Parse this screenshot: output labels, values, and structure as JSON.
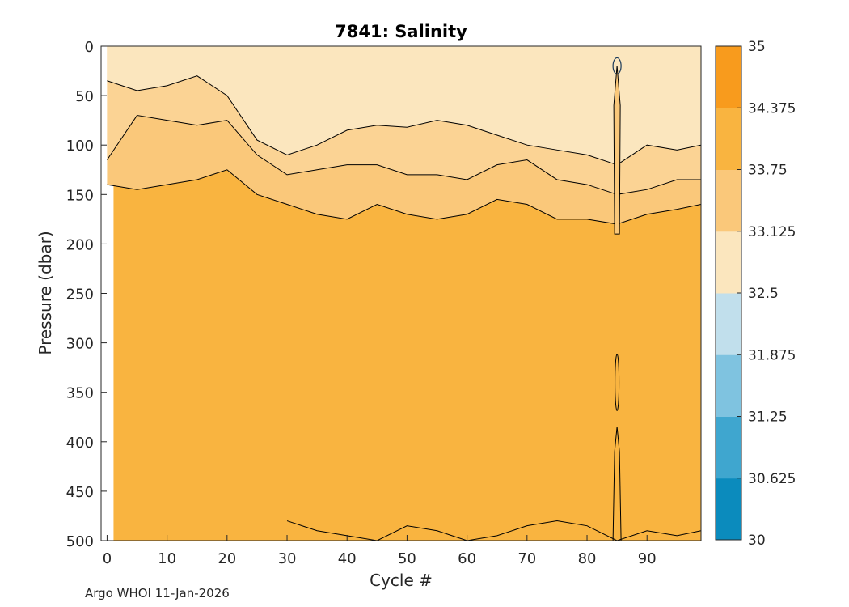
{
  "chart_data": {
    "type": "heatmap",
    "subtype": "filled-contour",
    "title": "7841:  Salinity",
    "xlabel": "Cycle #",
    "ylabel": "Pressure (dbar)",
    "xlim": [
      -1,
      99
    ],
    "ylim": [
      0,
      500
    ],
    "y_reversed": true,
    "x_ticks": [
      0,
      10,
      20,
      30,
      40,
      50,
      60,
      70,
      80,
      90
    ],
    "y_ticks": [
      0,
      50,
      100,
      150,
      200,
      250,
      300,
      350,
      400,
      450,
      500
    ],
    "colorbar": {
      "ticks": [
        "30",
        "30.625",
        "31.25",
        "31.875",
        "32.5",
        "33.125",
        "33.75",
        "34.375",
        "35"
      ],
      "colors": [
        "#0b8bbd",
        "#3fa6cf",
        "#7fc3e0",
        "#c1dfec",
        "#fbe6be",
        "#fac87a",
        "#f9b440",
        "#f89b1d"
      ]
    },
    "contour_levels": [
      32.5,
      33.125,
      33.75,
      34.375
    ],
    "layer_depths": {
      "cycles": [
        0,
        5,
        10,
        15,
        20,
        25,
        30,
        35,
        40,
        45,
        50,
        55,
        60,
        65,
        70,
        75,
        80,
        85,
        90,
        95,
        99
      ],
      "depth_32_5_to_33_125": [
        35,
        45,
        40,
        30,
        50,
        95,
        110,
        100,
        85,
        80,
        82,
        75,
        80,
        90,
        100,
        105,
        110,
        120,
        100,
        105,
        100
      ],
      "depth_33_125_to_33_75": [
        115,
        70,
        75,
        80,
        75,
        110,
        130,
        125,
        120,
        120,
        130,
        130,
        135,
        120,
        115,
        135,
        140,
        150,
        145,
        135,
        135
      ],
      "depth_33_75_to_34_375": [
        140,
        145,
        140,
        135,
        125,
        150,
        160,
        170,
        175,
        160,
        170,
        175,
        170,
        155,
        160,
        175,
        175,
        180,
        170,
        165,
        160
      ]
    },
    "deep_layer_top": {
      "cycles": [
        30,
        35,
        40,
        45,
        50,
        55,
        60,
        65,
        70,
        75,
        80,
        85,
        90,
        95,
        99
      ],
      "depth": [
        480,
        490,
        495,
        500,
        485,
        490,
        500,
        495,
        485,
        480,
        485,
        500,
        490,
        495,
        490
      ]
    }
  },
  "credit": "Argo WHOI 11-Jan-2026"
}
